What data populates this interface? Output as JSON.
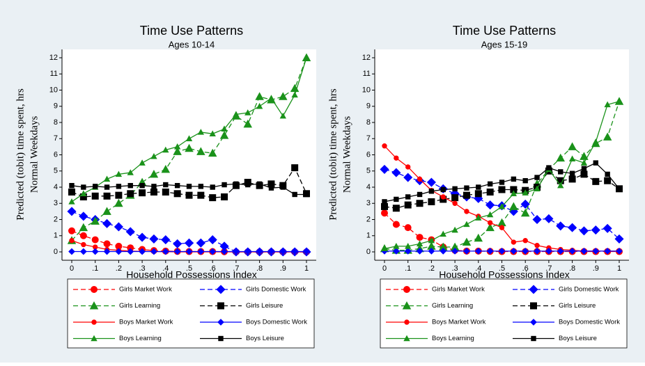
{
  "chart_data": [
    {
      "type": "line",
      "title": "Time Use Patterns",
      "subtitle": "Ages 10-14",
      "xlabel": "Household Possessions Index",
      "ylabel": [
        "Predicted (tobit) time spent, hrs",
        "Normal Weekdays"
      ],
      "x": [
        0,
        0.05,
        0.1,
        0.15,
        0.2,
        0.25,
        0.3,
        0.35,
        0.4,
        0.45,
        0.5,
        0.55,
        0.6,
        0.65,
        0.7,
        0.75,
        0.8,
        0.85,
        0.9,
        0.95,
        1
      ],
      "xlim": [
        0,
        1
      ],
      "ylim": [
        0,
        12
      ],
      "xticks": [
        0,
        {
          "value": 0.1,
          "label": ".1"
        },
        {
          "value": 0.2,
          "label": ".2"
        },
        {
          "value": 0.3,
          "label": ".3"
        },
        {
          "value": 0.4,
          "label": ".4"
        },
        {
          "value": 0.5,
          "label": ".5"
        },
        {
          "value": 0.6,
          "label": ".6"
        },
        {
          "value": 0.7,
          "label": ".7"
        },
        {
          "value": 0.8,
          "label": ".8"
        },
        {
          "value": 0.9,
          "label": ".9"
        },
        1
      ],
      "yticks": [
        0,
        1,
        2,
        3,
        4,
        5,
        6,
        7,
        8,
        9,
        10,
        11,
        12
      ],
      "series": [
        {
          "name": "Girls Market Work",
          "color": "#ff0000",
          "dash": true,
          "marker": "circle",
          "values": [
            1.3,
            1.0,
            0.75,
            0.5,
            0.35,
            0.25,
            0.15,
            0.08,
            0.05,
            0.03,
            0.02,
            0.02,
            0.02,
            0.01,
            0,
            0,
            0,
            0,
            0,
            0,
            0
          ]
        },
        {
          "name": "Girls Domestic Work",
          "color": "#0000ff",
          "dash": true,
          "marker": "diamond",
          "values": [
            2.5,
            2.2,
            2.0,
            1.75,
            1.55,
            1.25,
            0.9,
            0.8,
            0.75,
            0.5,
            0.55,
            0.55,
            0.75,
            0.35,
            0,
            0,
            0,
            0,
            0,
            0,
            0
          ]
        },
        {
          "name": "Girls Learning",
          "color": "#1a921a",
          "dash": true,
          "marker": "triangle",
          "values": [
            0.7,
            1.5,
            1.9,
            2.5,
            3.0,
            3.5,
            4.3,
            4.8,
            5.1,
            6.2,
            6.4,
            6.2,
            6.1,
            7.2,
            8.4,
            7.9,
            9.6,
            9.4,
            9.6,
            10.1,
            12.0
          ]
        },
        {
          "name": "Girls Leisure",
          "color": "#000000",
          "dash": true,
          "marker": "square",
          "values": [
            3.7,
            3.4,
            3.45,
            3.45,
            3.5,
            3.6,
            3.65,
            3.7,
            3.7,
            3.6,
            3.5,
            3.5,
            3.35,
            3.4,
            4.1,
            4.3,
            4.1,
            4.2,
            4.1,
            5.2,
            3.6
          ]
        },
        {
          "name": "Boys Market Work",
          "color": "#ff0000",
          "dash": false,
          "marker": "circle",
          "values": [
            0.7,
            0.45,
            0.3,
            0.15,
            0.1,
            0.05,
            0.03,
            0.02,
            0.01,
            0,
            0,
            0,
            0,
            0,
            0,
            0,
            0,
            0,
            0,
            0,
            0
          ]
        },
        {
          "name": "Boys Domestic Work",
          "color": "#0000ff",
          "dash": false,
          "marker": "diamond",
          "values": [
            0.02,
            0.02,
            0.02,
            0.02,
            0.02,
            0.02,
            0.02,
            0.02,
            0.02,
            0.02,
            0.02,
            0.02,
            0.02,
            0.02,
            0.02,
            0.02,
            0.02,
            0.02,
            0.02,
            0.02,
            0.02
          ]
        },
        {
          "name": "Boys Learning",
          "color": "#1a921a",
          "dash": false,
          "marker": "triangle",
          "values": [
            3.1,
            3.6,
            4.0,
            4.5,
            4.8,
            4.9,
            5.5,
            5.9,
            6.3,
            6.5,
            7.0,
            7.4,
            7.3,
            7.6,
            8.5,
            8.6,
            9.0,
            9.5,
            8.4,
            9.7,
            12.0
          ]
        },
        {
          "name": "Boys Leisure",
          "color": "#000000",
          "dash": false,
          "marker": "square",
          "values": [
            4.1,
            4.0,
            4.05,
            4.0,
            4.05,
            4.1,
            4.1,
            4.05,
            4.15,
            4.1,
            4.05,
            4.05,
            4.0,
            4.15,
            4.2,
            4.15,
            4.2,
            3.95,
            4.0,
            3.55,
            3.55
          ]
        }
      ]
    },
    {
      "type": "line",
      "title": "Time Use Patterns",
      "subtitle": "Ages 15-19",
      "xlabel": "Household Possessions Index",
      "ylabel": [
        "Predicted (tobit) time spent, hrs",
        "Normal Weekdays"
      ],
      "x": [
        0,
        0.05,
        0.1,
        0.15,
        0.2,
        0.25,
        0.3,
        0.35,
        0.4,
        0.45,
        0.5,
        0.55,
        0.6,
        0.65,
        0.7,
        0.75,
        0.8,
        0.85,
        0.9,
        0.95,
        1
      ],
      "xlim": [
        0,
        1
      ],
      "ylim": [
        0,
        12
      ],
      "xticks": [
        0,
        {
          "value": 0.1,
          "label": ".1"
        },
        {
          "value": 0.2,
          "label": ".2"
        },
        {
          "value": 0.3,
          "label": ".3"
        },
        {
          "value": 0.4,
          "label": ".4"
        },
        {
          "value": 0.5,
          "label": ".5"
        },
        {
          "value": 0.6,
          "label": ".6"
        },
        {
          "value": 0.7,
          "label": ".7"
        },
        {
          "value": 0.8,
          "label": ".8"
        },
        {
          "value": 0.9,
          "label": ".9"
        },
        1
      ],
      "yticks": [
        0,
        1,
        2,
        3,
        4,
        5,
        6,
        7,
        8,
        9,
        10,
        11,
        12
      ],
      "series": [
        {
          "name": "Girls Market Work",
          "color": "#ff0000",
          "dash": true,
          "marker": "circle",
          "values": [
            2.4,
            1.7,
            1.5,
            0.9,
            0.75,
            0.3,
            0.1,
            0.05,
            0.05,
            0.03,
            0.02,
            0.02,
            0.02,
            0.02,
            0.02,
            0.02,
            0.02,
            0.02,
            0.02,
            0.02,
            0.02
          ]
        },
        {
          "name": "Girls Domestic Work",
          "color": "#0000ff",
          "dash": true,
          "marker": "diamond",
          "values": [
            5.1,
            4.9,
            4.6,
            4.4,
            4.3,
            3.9,
            3.6,
            3.4,
            3.3,
            2.9,
            2.85,
            2.5,
            2.95,
            2.0,
            2.05,
            1.6,
            1.5,
            1.3,
            1.35,
            1.45,
            0.8
          ]
        },
        {
          "name": "Girls Learning",
          "color": "#1a921a",
          "dash": true,
          "marker": "triangle",
          "values": [
            0.2,
            0.1,
            0.1,
            0.2,
            0.35,
            0.3,
            0.3,
            0.6,
            0.85,
            1.5,
            1.8,
            2.8,
            2.4,
            4.2,
            5.1,
            5.8,
            6.5,
            5.9,
            6.7,
            7.1,
            9.3
          ]
        },
        {
          "name": "Girls Leisure",
          "color": "#000000",
          "dash": true,
          "marker": "square",
          "values": [
            2.8,
            2.7,
            2.9,
            3.0,
            3.1,
            3.25,
            3.35,
            3.5,
            3.6,
            3.7,
            3.85,
            3.85,
            3.8,
            4.0,
            5.0,
            4.4,
            4.5,
            4.8,
            4.35,
            4.4,
            3.9
          ]
        },
        {
          "name": "Boys Market Work",
          "color": "#ff0000",
          "dash": false,
          "marker": "circle",
          "values": [
            6.55,
            5.8,
            5.25,
            4.5,
            3.8,
            3.4,
            3.0,
            2.5,
            2.2,
            1.8,
            1.5,
            0.6,
            0.7,
            0.4,
            0.25,
            0.15,
            0.1,
            0.05,
            0.05,
            0.05,
            0.05
          ]
        },
        {
          "name": "Boys Domestic Work",
          "color": "#0000ff",
          "dash": false,
          "marker": "diamond",
          "values": [
            0.05,
            0.05,
            0.05,
            0.05,
            0.05,
            0.05,
            0.05,
            0.05,
            0.05,
            0.05,
            0.05,
            0.05,
            0.05,
            0.05,
            0.05,
            0.05,
            0.05,
            0.05,
            0.05,
            0.05,
            0.05
          ]
        },
        {
          "name": "Boys Learning",
          "color": "#1a921a",
          "dash": false,
          "marker": "triangle",
          "values": [
            0.2,
            0.35,
            0.35,
            0.5,
            0.7,
            1.1,
            1.35,
            1.7,
            2.1,
            2.3,
            2.8,
            3.6,
            3.65,
            3.9,
            5.1,
            4.1,
            5.75,
            5.5,
            6.8,
            9.1,
            9.3
          ]
        },
        {
          "name": "Boys Leisure",
          "color": "#000000",
          "dash": false,
          "marker": "square",
          "values": [
            3.1,
            3.25,
            3.4,
            3.55,
            3.75,
            3.85,
            3.9,
            3.95,
            4.0,
            4.2,
            4.3,
            4.5,
            4.4,
            4.6,
            5.2,
            4.95,
            4.85,
            5.15,
            5.5,
            4.8,
            3.9
          ]
        }
      ]
    }
  ]
}
